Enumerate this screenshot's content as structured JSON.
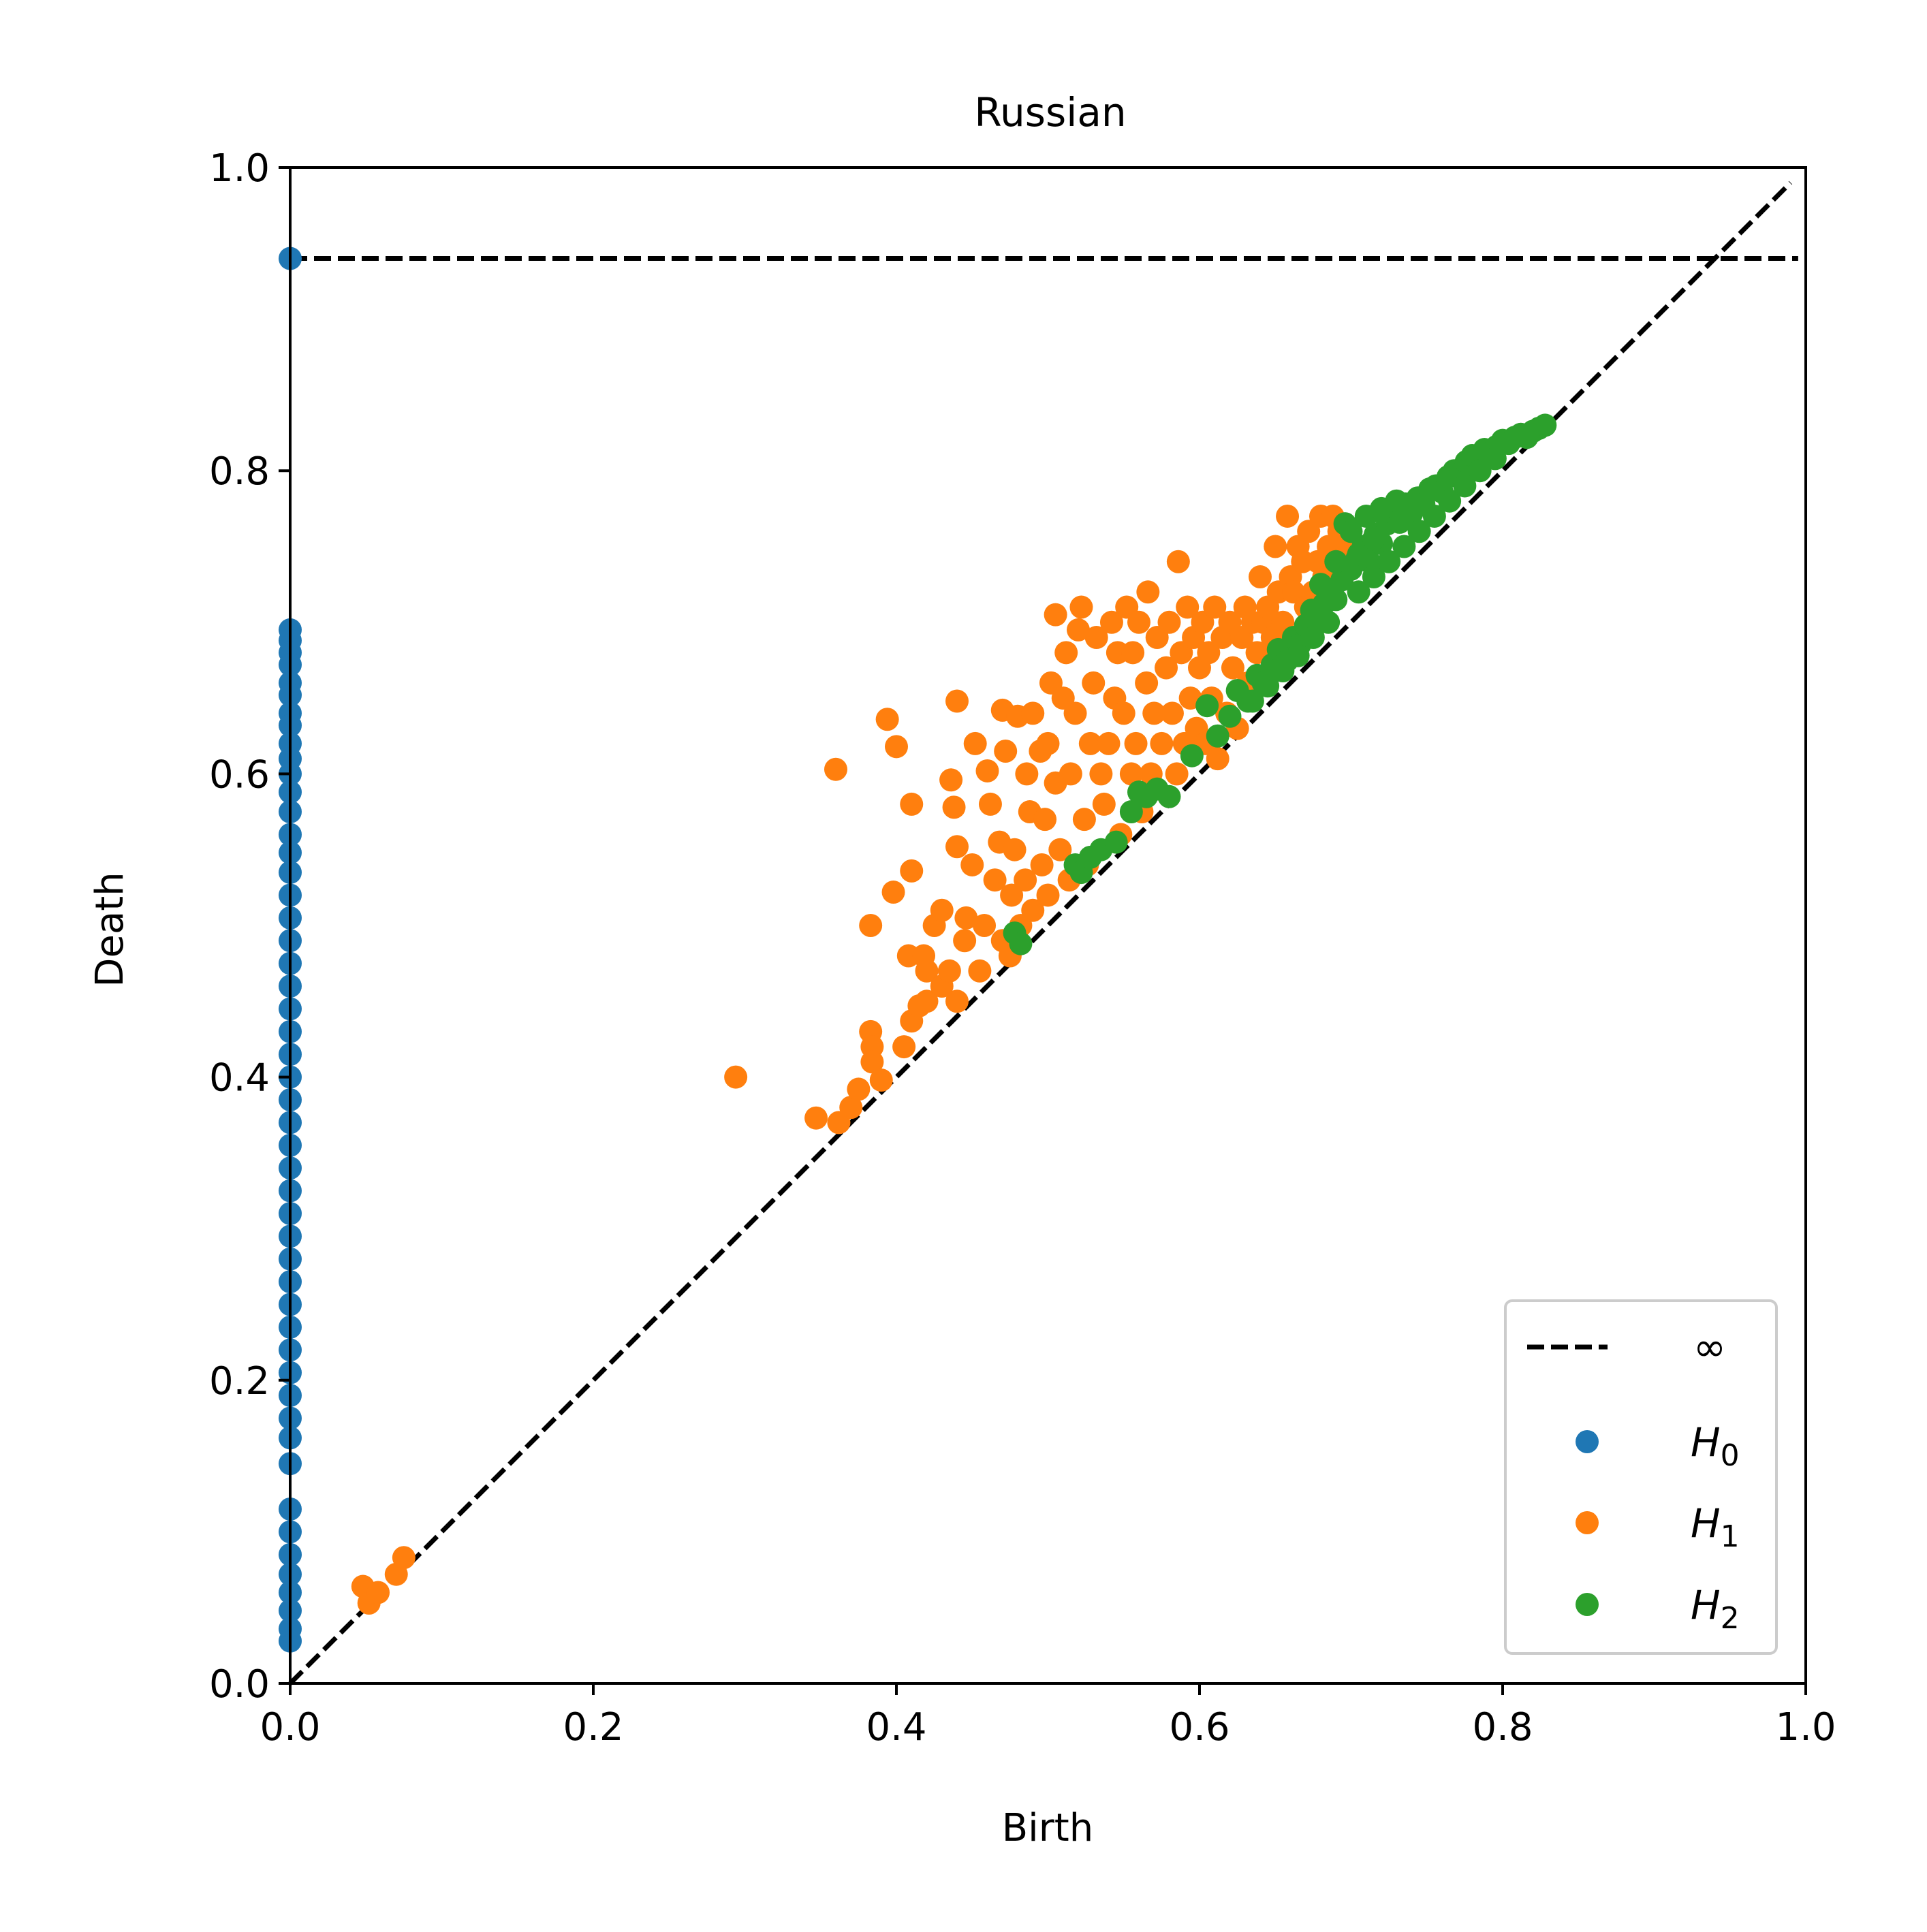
{
  "chart_data": {
    "type": "scatter",
    "title": "Russian",
    "xlabel": "Birth",
    "ylabel": "Death",
    "xlim": [
      0.0,
      1.0
    ],
    "ylim": [
      0.0,
      1.0
    ],
    "xticks": [
      "0.0",
      "0.2",
      "0.4",
      "0.6",
      "0.8",
      "1.0"
    ],
    "yticks": [
      "0.0",
      "0.2",
      "0.4",
      "0.6",
      "0.8",
      "1.0"
    ],
    "grid": false,
    "legend_position": "lower-right",
    "infinity_line": {
      "label": "∞",
      "y": 0.94,
      "style": "dashed",
      "color": "#000000"
    },
    "diagonal": {
      "style": "dashed",
      "color": "#000000"
    },
    "series": [
      {
        "name": "H",
        "subscript": "0",
        "color": "#1f77b4",
        "points": [
          [
            0,
            0.94
          ],
          [
            0,
            0.695
          ],
          [
            0,
            0.688
          ],
          [
            0,
            0.68
          ],
          [
            0,
            0.672
          ],
          [
            0,
            0.66
          ],
          [
            0,
            0.652
          ],
          [
            0,
            0.64
          ],
          [
            0,
            0.632
          ],
          [
            0,
            0.62
          ],
          [
            0,
            0.61
          ],
          [
            0,
            0.6
          ],
          [
            0,
            0.588
          ],
          [
            0,
            0.575
          ],
          [
            0,
            0.56
          ],
          [
            0,
            0.548
          ],
          [
            0,
            0.535
          ],
          [
            0,
            0.52
          ],
          [
            0,
            0.505
          ],
          [
            0,
            0.49
          ],
          [
            0,
            0.475
          ],
          [
            0,
            0.46
          ],
          [
            0,
            0.445
          ],
          [
            0,
            0.43
          ],
          [
            0,
            0.415
          ],
          [
            0,
            0.4
          ],
          [
            0,
            0.385
          ],
          [
            0,
            0.37
          ],
          [
            0,
            0.355
          ],
          [
            0,
            0.34
          ],
          [
            0,
            0.325
          ],
          [
            0,
            0.31
          ],
          [
            0,
            0.295
          ],
          [
            0,
            0.28
          ],
          [
            0,
            0.265
          ],
          [
            0,
            0.25
          ],
          [
            0,
            0.235
          ],
          [
            0,
            0.22
          ],
          [
            0,
            0.205
          ],
          [
            0,
            0.19
          ],
          [
            0,
            0.175
          ],
          [
            0,
            0.162
          ],
          [
            0,
            0.145
          ],
          [
            0,
            0.115
          ],
          [
            0,
            0.1
          ],
          [
            0,
            0.085
          ],
          [
            0,
            0.072
          ],
          [
            0,
            0.06
          ],
          [
            0,
            0.048
          ],
          [
            0,
            0.036
          ],
          [
            0,
            0.028
          ]
        ]
      },
      {
        "name": "H",
        "subscript": "1",
        "color": "#ff7f0e",
        "points": [
          [
            0.048,
            0.064
          ],
          [
            0.052,
            0.053
          ],
          [
            0.058,
            0.06
          ],
          [
            0.07,
            0.072
          ],
          [
            0.075,
            0.083
          ],
          [
            0.294,
            0.4
          ],
          [
            0.347,
            0.373
          ],
          [
            0.36,
            0.603
          ],
          [
            0.362,
            0.37
          ],
          [
            0.37,
            0.38
          ],
          [
            0.375,
            0.392
          ],
          [
            0.383,
            0.43
          ],
          [
            0.384,
            0.42
          ],
          [
            0.384,
            0.41
          ],
          [
            0.383,
            0.5
          ],
          [
            0.39,
            0.398
          ],
          [
            0.394,
            0.636
          ],
          [
            0.4,
            0.618
          ],
          [
            0.398,
            0.522
          ],
          [
            0.408,
            0.48
          ],
          [
            0.41,
            0.536
          ],
          [
            0.41,
            0.58
          ],
          [
            0.405,
            0.42
          ],
          [
            0.41,
            0.437
          ],
          [
            0.415,
            0.447
          ],
          [
            0.42,
            0.45
          ],
          [
            0.418,
            0.48
          ],
          [
            0.42,
            0.47
          ],
          [
            0.425,
            0.5
          ],
          [
            0.43,
            0.51
          ],
          [
            0.43,
            0.46
          ],
          [
            0.435,
            0.47
          ],
          [
            0.44,
            0.45
          ],
          [
            0.436,
            0.596
          ],
          [
            0.438,
            0.578
          ],
          [
            0.44,
            0.552
          ],
          [
            0.44,
            0.648
          ],
          [
            0.445,
            0.49
          ],
          [
            0.446,
            0.505
          ],
          [
            0.45,
            0.54
          ],
          [
            0.452,
            0.62
          ],
          [
            0.455,
            0.47
          ],
          [
            0.458,
            0.5
          ],
          [
            0.46,
            0.602
          ],
          [
            0.462,
            0.58
          ],
          [
            0.465,
            0.53
          ],
          [
            0.468,
            0.555
          ],
          [
            0.47,
            0.642
          ],
          [
            0.47,
            0.49
          ],
          [
            0.472,
            0.615
          ],
          [
            0.475,
            0.48
          ],
          [
            0.476,
            0.52
          ],
          [
            0.478,
            0.55
          ],
          [
            0.48,
            0.638
          ],
          [
            0.482,
            0.5
          ],
          [
            0.485,
            0.53
          ],
          [
            0.486,
            0.6
          ],
          [
            0.488,
            0.575
          ],
          [
            0.49,
            0.51
          ],
          [
            0.49,
            0.64
          ],
          [
            0.495,
            0.615
          ],
          [
            0.496,
            0.54
          ],
          [
            0.498,
            0.57
          ],
          [
            0.5,
            0.62
          ],
          [
            0.5,
            0.52
          ],
          [
            0.502,
            0.66
          ],
          [
            0.505,
            0.594
          ],
          [
            0.505,
            0.705
          ],
          [
            0.508,
            0.55
          ],
          [
            0.51,
            0.65
          ],
          [
            0.512,
            0.68
          ],
          [
            0.514,
            0.53
          ],
          [
            0.515,
            0.6
          ],
          [
            0.518,
            0.64
          ],
          [
            0.52,
            0.695
          ],
          [
            0.522,
            0.71
          ],
          [
            0.524,
            0.57
          ],
          [
            0.526,
            0.54
          ],
          [
            0.528,
            0.62
          ],
          [
            0.53,
            0.66
          ],
          [
            0.532,
            0.69
          ],
          [
            0.535,
            0.6
          ],
          [
            0.537,
            0.58
          ],
          [
            0.54,
            0.62
          ],
          [
            0.542,
            0.7
          ],
          [
            0.544,
            0.65
          ],
          [
            0.546,
            0.68
          ],
          [
            0.548,
            0.56
          ],
          [
            0.55,
            0.64
          ],
          [
            0.552,
            0.71
          ],
          [
            0.555,
            0.6
          ],
          [
            0.556,
            0.68
          ],
          [
            0.558,
            0.62
          ],
          [
            0.56,
            0.7
          ],
          [
            0.562,
            0.575
          ],
          [
            0.565,
            0.66
          ],
          [
            0.566,
            0.72
          ],
          [
            0.568,
            0.6
          ],
          [
            0.57,
            0.64
          ],
          [
            0.572,
            0.69
          ],
          [
            0.575,
            0.62
          ],
          [
            0.578,
            0.67
          ],
          [
            0.58,
            0.7
          ],
          [
            0.582,
            0.64
          ],
          [
            0.585,
            0.6
          ],
          [
            0.586,
            0.74
          ],
          [
            0.588,
            0.68
          ],
          [
            0.59,
            0.62
          ],
          [
            0.592,
            0.71
          ],
          [
            0.594,
            0.65
          ],
          [
            0.596,
            0.69
          ],
          [
            0.598,
            0.63
          ],
          [
            0.6,
            0.67
          ],
          [
            0.602,
            0.7
          ],
          [
            0.604,
            0.62
          ],
          [
            0.606,
            0.68
          ],
          [
            0.608,
            0.65
          ],
          [
            0.61,
            0.71
          ],
          [
            0.612,
            0.61
          ],
          [
            0.615,
            0.69
          ],
          [
            0.618,
            0.64
          ],
          [
            0.62,
            0.7
          ],
          [
            0.622,
            0.67
          ],
          [
            0.625,
            0.63
          ],
          [
            0.628,
            0.69
          ],
          [
            0.63,
            0.71
          ],
          [
            0.632,
            0.66
          ],
          [
            0.635,
            0.7
          ],
          [
            0.638,
            0.68
          ],
          [
            0.64,
            0.73
          ],
          [
            0.642,
            0.7
          ],
          [
            0.645,
            0.71
          ],
          [
            0.648,
            0.69
          ],
          [
            0.65,
            0.75
          ],
          [
            0.652,
            0.72
          ],
          [
            0.655,
            0.7
          ],
          [
            0.658,
            0.77
          ],
          [
            0.66,
            0.73
          ],
          [
            0.662,
            0.72
          ],
          [
            0.665,
            0.75
          ],
          [
            0.668,
            0.74
          ],
          [
            0.67,
            0.71
          ],
          [
            0.672,
            0.76
          ],
          [
            0.675,
            0.72
          ],
          [
            0.678,
            0.74
          ],
          [
            0.68,
            0.77
          ],
          [
            0.682,
            0.73
          ],
          [
            0.685,
            0.75
          ],
          [
            0.688,
            0.77
          ],
          [
            0.69,
            0.74
          ],
          [
            0.692,
            0.76
          ],
          [
            0.695,
            0.75
          ]
        ]
      },
      {
        "name": "H",
        "subscript": "2",
        "color": "#2ca02c",
        "points": [
          [
            0.478,
            0.495
          ],
          [
            0.482,
            0.488
          ],
          [
            0.518,
            0.54
          ],
          [
            0.522,
            0.535
          ],
          [
            0.528,
            0.545
          ],
          [
            0.535,
            0.55
          ],
          [
            0.545,
            0.555
          ],
          [
            0.555,
            0.575
          ],
          [
            0.56,
            0.588
          ],
          [
            0.565,
            0.585
          ],
          [
            0.572,
            0.59
          ],
          [
            0.58,
            0.585
          ],
          [
            0.595,
            0.612
          ],
          [
            0.605,
            0.645
          ],
          [
            0.612,
            0.625
          ],
          [
            0.62,
            0.638
          ],
          [
            0.625,
            0.655
          ],
          [
            0.632,
            0.648
          ],
          [
            0.638,
            0.665
          ],
          [
            0.642,
            0.66
          ],
          [
            0.648,
            0.672
          ],
          [
            0.652,
            0.682
          ],
          [
            0.658,
            0.675
          ],
          [
            0.662,
            0.69
          ],
          [
            0.666,
            0.685
          ],
          [
            0.67,
            0.698
          ],
          [
            0.674,
            0.708
          ],
          [
            0.678,
            0.7
          ],
          [
            0.682,
            0.712
          ],
          [
            0.686,
            0.72
          ],
          [
            0.69,
            0.715
          ],
          [
            0.694,
            0.728
          ],
          [
            0.696,
            0.765
          ],
          [
            0.7,
            0.735
          ],
          [
            0.704,
            0.742
          ],
          [
            0.708,
            0.75
          ],
          [
            0.712,
            0.74
          ],
          [
            0.716,
            0.758
          ],
          [
            0.72,
            0.752
          ],
          [
            0.724,
            0.765
          ],
          [
            0.728,
            0.772
          ],
          [
            0.732,
            0.766
          ],
          [
            0.736,
            0.778
          ],
          [
            0.74,
            0.772
          ],
          [
            0.744,
            0.782
          ],
          [
            0.748,
            0.778
          ],
          [
            0.752,
            0.788
          ],
          [
            0.756,
            0.79
          ],
          [
            0.76,
            0.786
          ],
          [
            0.764,
            0.796
          ],
          [
            0.768,
            0.8
          ],
          [
            0.772,
            0.798
          ],
          [
            0.776,
            0.806
          ],
          [
            0.78,
            0.81
          ],
          [
            0.784,
            0.806
          ],
          [
            0.788,
            0.814
          ],
          [
            0.792,
            0.812
          ],
          [
            0.796,
            0.816
          ],
          [
            0.8,
            0.82
          ],
          [
            0.804,
            0.818
          ],
          [
            0.808,
            0.822
          ],
          [
            0.812,
            0.824
          ],
          [
            0.816,
            0.822
          ],
          [
            0.82,
            0.826
          ],
          [
            0.824,
            0.828
          ],
          [
            0.828,
            0.83
          ],
          [
            0.705,
            0.72
          ],
          [
            0.715,
            0.73
          ],
          [
            0.725,
            0.74
          ],
          [
            0.735,
            0.75
          ],
          [
            0.745,
            0.76
          ],
          [
            0.755,
            0.77
          ],
          [
            0.765,
            0.78
          ],
          [
            0.775,
            0.79
          ],
          [
            0.785,
            0.8
          ],
          [
            0.795,
            0.808
          ],
          [
            0.685,
            0.7
          ],
          [
            0.675,
            0.69
          ],
          [
            0.665,
            0.678
          ],
          [
            0.655,
            0.668
          ],
          [
            0.645,
            0.658
          ],
          [
            0.635,
            0.648
          ],
          [
            0.7,
            0.76
          ],
          [
            0.71,
            0.77
          ],
          [
            0.72,
            0.775
          ],
          [
            0.73,
            0.78
          ],
          [
            0.705,
            0.745
          ],
          [
            0.715,
            0.755
          ],
          [
            0.69,
            0.74
          ],
          [
            0.68,
            0.725
          ]
        ]
      }
    ]
  }
}
